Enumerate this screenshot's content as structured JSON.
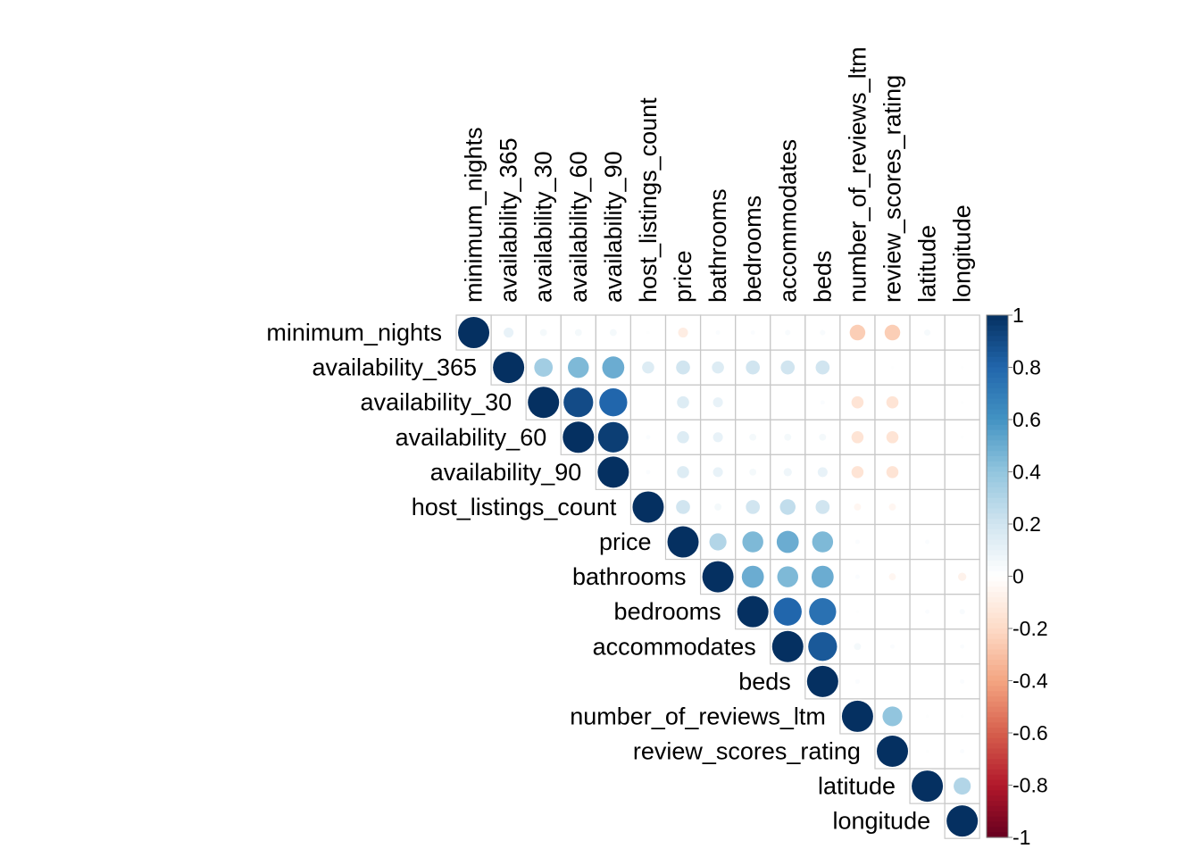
{
  "chart_data": {
    "type": "heatmap",
    "subtype": "correlation-circle-upper-triangle",
    "title": "",
    "variables": [
      "minimum_nights",
      "availability_365",
      "availability_30",
      "availability_60",
      "availability_90",
      "host_listings_count",
      "price",
      "bathrooms",
      "bedrooms",
      "accommodates",
      "beds",
      "number_of_reviews_ltm",
      "review_scores_rating",
      "latitude",
      "longitude"
    ],
    "matrix": [
      [
        1,
        0.1,
        0.05,
        0.05,
        0.05,
        0.01,
        -0.1,
        0.02,
        0.02,
        0.03,
        0.03,
        -0.25,
        -0.25,
        0.04,
        0
      ],
      [
        null,
        1,
        0.35,
        0.45,
        0.5,
        0.15,
        0.2,
        0.15,
        0.2,
        0.2,
        0.2,
        0,
        0.01,
        0,
        0.01
      ],
      [
        null,
        null,
        1,
        0.9,
        0.8,
        0,
        0.15,
        0.1,
        0,
        0,
        0.02,
        -0.15,
        -0.15,
        0,
        0.01
      ],
      [
        null,
        null,
        null,
        1,
        0.95,
        0.02,
        0.15,
        0.1,
        0.05,
        0.05,
        0.05,
        -0.15,
        -0.15,
        0,
        0.01
      ],
      [
        null,
        null,
        null,
        null,
        1,
        0.02,
        0.15,
        0.1,
        0.05,
        0.07,
        0.1,
        -0.15,
        -0.15,
        0,
        0
      ],
      [
        null,
        null,
        null,
        null,
        null,
        1,
        0.2,
        0.05,
        0.2,
        0.25,
        0.2,
        -0.05,
        -0.05,
        0,
        0
      ],
      [
        null,
        null,
        null,
        null,
        null,
        null,
        1,
        0.3,
        0.45,
        0.5,
        0.45,
        0.02,
        0,
        0.02,
        0
      ],
      [
        null,
        null,
        null,
        null,
        null,
        null,
        null,
        1,
        0.5,
        0.45,
        0.5,
        0.02,
        -0.05,
        0,
        -0.07
      ],
      [
        null,
        null,
        null,
        null,
        null,
        null,
        null,
        null,
        1,
        0.8,
        0.75,
        0.01,
        0,
        0.02,
        0.03
      ],
      [
        null,
        null,
        null,
        null,
        null,
        null,
        null,
        null,
        null,
        1,
        0.85,
        0.05,
        0.02,
        0,
        0.02
      ],
      [
        null,
        null,
        null,
        null,
        null,
        null,
        null,
        null,
        null,
        null,
        1,
        0.02,
        0,
        0,
        0.02
      ],
      [
        null,
        null,
        null,
        null,
        null,
        null,
        null,
        null,
        null,
        null,
        null,
        1,
        0.4,
        0.01,
        0.01
      ],
      [
        null,
        null,
        null,
        null,
        null,
        null,
        null,
        null,
        null,
        null,
        null,
        null,
        1,
        0.01,
        0.02
      ],
      [
        null,
        null,
        null,
        null,
        null,
        null,
        null,
        null,
        null,
        null,
        null,
        null,
        null,
        1,
        0.3
      ],
      [
        null,
        null,
        null,
        null,
        null,
        null,
        null,
        null,
        null,
        null,
        null,
        null,
        null,
        null,
        1
      ]
    ],
    "colorbar": {
      "ticks": [
        "1",
        "0.8",
        "0.6",
        "0.4",
        "0.2",
        "0",
        "-0.2",
        "-0.4",
        "-0.6",
        "-0.8",
        "-1"
      ],
      "range": [
        -1,
        1
      ]
    },
    "colors": {
      "neg1": "#67001f",
      "neg08": "#b2182b",
      "neg06": "#d6604d",
      "neg04": "#f4a582",
      "neg02": "#fddbc7",
      "zero": "#ffffff",
      "pos02": "#d1e5f0",
      "pos04": "#92c5de",
      "pos06": "#4393c3",
      "pos08": "#2166ac",
      "pos1": "#053061",
      "grid": "#c8c8c8"
    }
  }
}
